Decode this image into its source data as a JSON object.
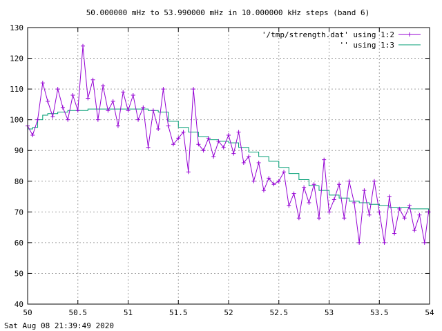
{
  "chart_data": {
    "type": "line",
    "title": "50.000000 mHz to 53.990000 mHz in 10.000000 kHz steps (band 6)",
    "xlabel": "",
    "ylabel": "",
    "xlim": [
      50,
      54
    ],
    "ylim": [
      40,
      130
    ],
    "x_ticks": [
      "50",
      "50.5",
      "51",
      "51.5",
      "52",
      "52.5",
      "53",
      "53.5",
      "54"
    ],
    "y_ticks": [
      "40",
      "50",
      "60",
      "70",
      "80",
      "90",
      "100",
      "110",
      "120",
      "130"
    ],
    "grid": true,
    "legend_position": "top-right",
    "timestamp": "Sat Aug 08 21:39:49 2020",
    "series": [
      {
        "name": "'/tmp/strength.dat' using 1:2",
        "color": "#9400d3",
        "marker": "plus",
        "x": [
          50.0,
          50.05,
          50.1,
          50.15,
          50.2,
          50.25,
          50.3,
          50.35,
          50.4,
          50.45,
          50.5,
          50.55,
          50.6,
          50.65,
          50.7,
          50.75,
          50.8,
          50.85,
          50.9,
          50.95,
          51.0,
          51.05,
          51.1,
          51.15,
          51.2,
          51.25,
          51.3,
          51.35,
          51.4,
          51.45,
          51.5,
          51.55,
          51.6,
          51.65,
          51.7,
          51.75,
          51.8,
          51.85,
          51.9,
          51.95,
          52.0,
          52.05,
          52.1,
          52.15,
          52.2,
          52.25,
          52.3,
          52.35,
          52.4,
          52.45,
          52.5,
          52.55,
          52.6,
          52.65,
          52.7,
          52.75,
          52.8,
          52.85,
          52.9,
          52.95,
          53.0,
          53.05,
          53.1,
          53.15,
          53.2,
          53.25,
          53.3,
          53.35,
          53.4,
          53.45,
          53.5,
          53.55,
          53.6,
          53.65,
          53.7,
          53.75,
          53.8,
          53.85,
          53.9,
          53.95,
          53.99
        ],
        "values": [
          98,
          95,
          100,
          112,
          106,
          101,
          110,
          104,
          100,
          108,
          103,
          124,
          107,
          113,
          100,
          111,
          103,
          106,
          98,
          109,
          103,
          108,
          100,
          104,
          91,
          103,
          97,
          110,
          98,
          92,
          94,
          96,
          83,
          110,
          92,
          90,
          94,
          88,
          93,
          91,
          95,
          89,
          96,
          86,
          88,
          80,
          86,
          77,
          81,
          79,
          80,
          83,
          72,
          76,
          68,
          78,
          73,
          79,
          68,
          87,
          70,
          74,
          79,
          68,
          80,
          73,
          60,
          77,
          69,
          80,
          70,
          60,
          75,
          63,
          71,
          68,
          72,
          64,
          69,
          60,
          70
        ]
      },
      {
        "name": "'' using 1:3",
        "color": "#009e73",
        "marker": "none",
        "x": [
          50.0,
          50.05,
          50.1,
          50.15,
          50.2,
          50.3,
          50.4,
          50.5,
          50.6,
          50.7,
          50.8,
          50.9,
          51.0,
          51.1,
          51.2,
          51.3,
          51.4,
          51.5,
          51.6,
          51.7,
          51.8,
          51.9,
          52.0,
          52.1,
          52.2,
          52.3,
          52.4,
          52.5,
          52.6,
          52.7,
          52.8,
          52.9,
          53.0,
          53.1,
          53.2,
          53.3,
          53.4,
          53.5,
          53.6,
          53.7,
          53.8,
          53.9,
          53.99
        ],
        "values": [
          97,
          97.5,
          100,
          101.5,
          102,
          102.5,
          103,
          103,
          103.5,
          103.5,
          103.5,
          103.5,
          103.5,
          103.5,
          103,
          102.5,
          99.5,
          97.5,
          96,
          94.5,
          93.5,
          93,
          92.5,
          91,
          89.5,
          88,
          86.5,
          84.5,
          82.5,
          80.5,
          78.5,
          77,
          75.5,
          74.5,
          73.5,
          73,
          72.5,
          72,
          71.5,
          71.5,
          71,
          71,
          70.5
        ]
      }
    ]
  }
}
